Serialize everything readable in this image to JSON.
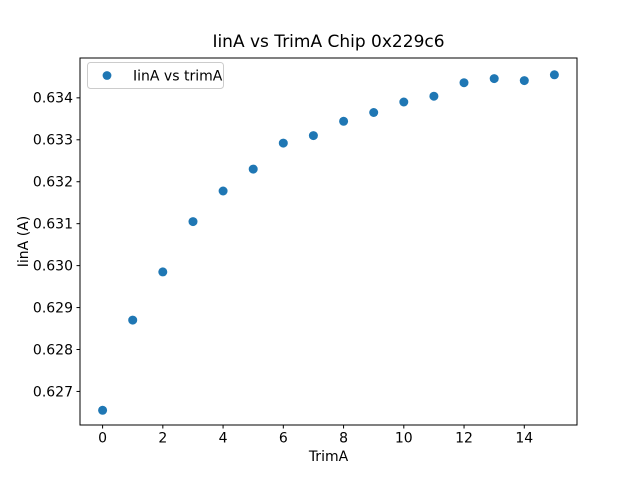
{
  "figure": {
    "background": "#ffffff"
  },
  "chart_data": {
    "type": "scatter",
    "title": "IinA vs TrimA Chip 0x229c6",
    "xlabel": "TrimA",
    "ylabel": "IinA (A)",
    "legend": {
      "label": "IinA vs trimA",
      "position": "upper left",
      "marker": "dot"
    },
    "x": [
      0,
      1,
      2,
      3,
      4,
      5,
      6,
      7,
      8,
      9,
      10,
      11,
      12,
      13,
      14,
      15
    ],
    "y": [
      0.62655,
      0.6287,
      0.62985,
      0.63105,
      0.63178,
      0.6323,
      0.63292,
      0.6331,
      0.63344,
      0.63365,
      0.6339,
      0.63404,
      0.63436,
      0.63446,
      0.63441,
      0.63455
    ],
    "xlim": [
      -0.75,
      15.75
    ],
    "ylim": [
      0.6262,
      0.63495
    ],
    "xticks": [
      0,
      2,
      4,
      6,
      8,
      10,
      12,
      14
    ],
    "xtick_labels": [
      "0",
      "2",
      "4",
      "6",
      "8",
      "10",
      "12",
      "14"
    ],
    "yticks": [
      0.627,
      0.628,
      0.629,
      0.63,
      0.631,
      0.632,
      0.633,
      0.634
    ],
    "ytick_labels": [
      "0.627",
      "0.628",
      "0.629",
      "0.630",
      "0.631",
      "0.632",
      "0.633",
      "0.634"
    ],
    "grid": false,
    "legend_position": "upper left",
    "colors": {
      "marker": "#1f77b4",
      "text": "#000000",
      "spine": "#000000",
      "legend_border": "#cccccc",
      "background": "#ffffff"
    }
  }
}
